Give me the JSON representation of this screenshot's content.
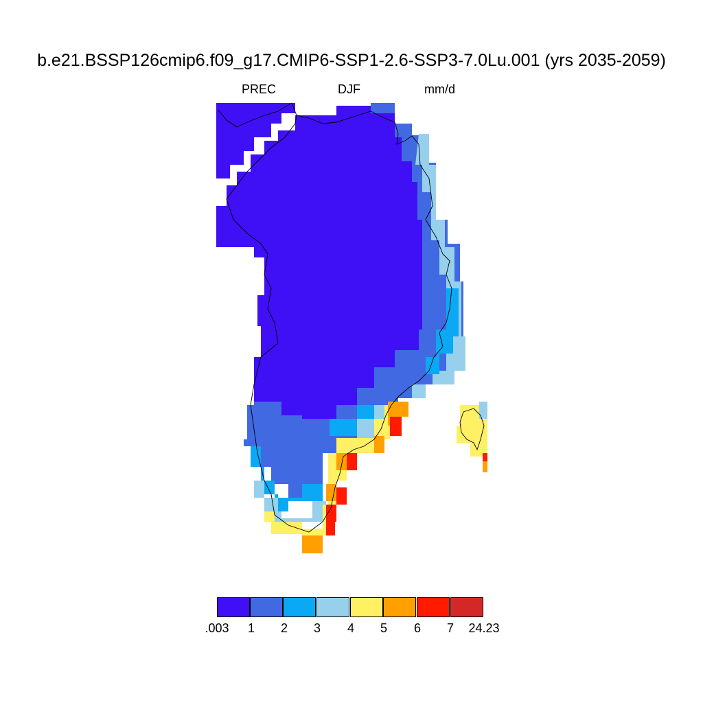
{
  "header": {
    "title": "b.e21.BSSP126cmip6.f09_g17.CMIP6-SSP1-2.6-SSP3-7.0Lu.001 (yrs 2035-2059)",
    "variable": "PREC",
    "season": "DJF",
    "units": "mm/d"
  },
  "colorbar": {
    "colors": [
      "#3f0ff5",
      "#4169e1",
      "#0aa8f5",
      "#96d0ec",
      "#fff064",
      "#ffa000",
      "#ff1a00",
      "#d42828"
    ],
    "labels": [
      ".003",
      "1",
      "2",
      "3",
      "4",
      "5",
      "6",
      "7",
      "24.23"
    ]
  },
  "map": {
    "region": "Greenland",
    "fill_scheme": "precipitation bins"
  }
}
